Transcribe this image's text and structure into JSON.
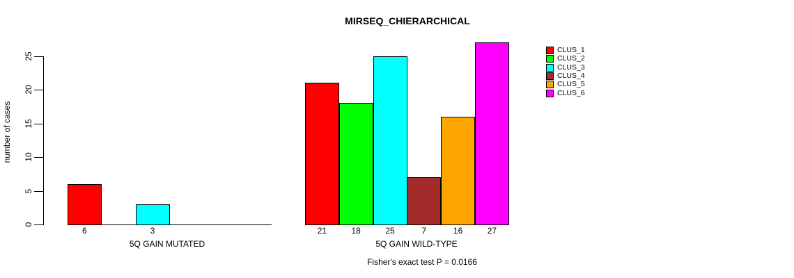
{
  "chart_data": {
    "type": "bar",
    "title": "MIRSEQ_CHIERARCHICAL",
    "ylabel": "number of cases",
    "xlabel": "",
    "annotation": "Fisher's exact test P = 0.0166",
    "ylim": [
      0,
      27
    ],
    "yticks": [
      0,
      5,
      10,
      15,
      20,
      25
    ],
    "grid": false,
    "legend_position": "top-right",
    "series": [
      {
        "name": "CLUS_1",
        "color": "#FF0000",
        "values": [
          6,
          21
        ]
      },
      {
        "name": "CLUS_2",
        "color": "#00FF00",
        "values": [
          0,
          18
        ]
      },
      {
        "name": "CLUS_3",
        "color": "#00FFFF",
        "values": [
          3,
          25
        ]
      },
      {
        "name": "CLUS_4",
        "color": "#A52A2A",
        "values": [
          0,
          7
        ]
      },
      {
        "name": "CLUS_5",
        "color": "#FFA500",
        "values": [
          0,
          16
        ]
      },
      {
        "name": "CLUS_6",
        "color": "#FF00FF",
        "values": [
          0,
          27
        ]
      }
    ],
    "categories": [
      "5Q GAIN MUTATED",
      "5Q GAIN WILD-TYPE"
    ],
    "groups": [
      {
        "category": "5Q GAIN MUTATED",
        "values": [
          6,
          0,
          3,
          0,
          0,
          0
        ]
      },
      {
        "category": "5Q GAIN WILD-TYPE",
        "values": [
          21,
          18,
          25,
          7,
          16,
          27
        ]
      }
    ],
    "bar_labels_rule": "value shown under each nonzero bar",
    "axis_color": "#000000",
    "background_color": "#FFFFFF"
  }
}
